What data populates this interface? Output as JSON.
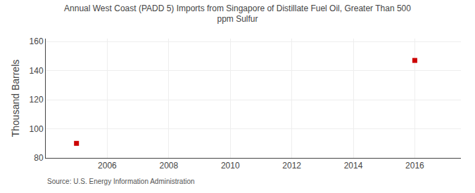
{
  "chart_data": {
    "type": "scatter",
    "title": "Annual West Coast (PADD 5) Imports from Singapore of Distillate Fuel Oil, Greater Than 500\nppm Sulfur",
    "ylabel": "Thousand Barrels",
    "annotations": [
      "Source: U.S. Energy Information Administration"
    ],
    "x": [
      2005,
      2016
    ],
    "values": [
      90,
      147
    ],
    "color": "#cc0000",
    "marker": "square",
    "xlim": [
      2004.0,
      2017.5
    ],
    "ylim": [
      80,
      162
    ],
    "xticks": [
      2006,
      2008,
      2010,
      2012,
      2014,
      2016
    ],
    "yticks": [
      80,
      100,
      120,
      140,
      160
    ],
    "grid": true
  }
}
